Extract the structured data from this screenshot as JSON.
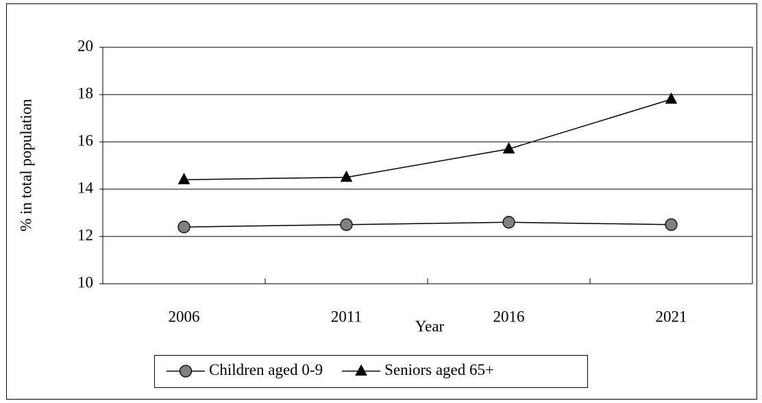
{
  "chart_data": {
    "type": "line",
    "x_label": "Year",
    "y_label": "% in total population",
    "categories": [
      "2006",
      "2011",
      "2016",
      "2021"
    ],
    "series": [
      {
        "name": "Children aged 0-9",
        "color": "#808080",
        "marker": "circle",
        "values": [
          12.4,
          12.5,
          12.6,
          12.5
        ]
      },
      {
        "name": "Seniors aged 65+",
        "color": "#000000",
        "marker": "triangle",
        "values": [
          14.4,
          14.5,
          15.7,
          17.8
        ]
      }
    ],
    "ylim": [
      10,
      20
    ],
    "yticks": [
      10,
      12,
      14,
      16,
      18,
      20
    ],
    "grid": true,
    "legend": "bottom"
  }
}
